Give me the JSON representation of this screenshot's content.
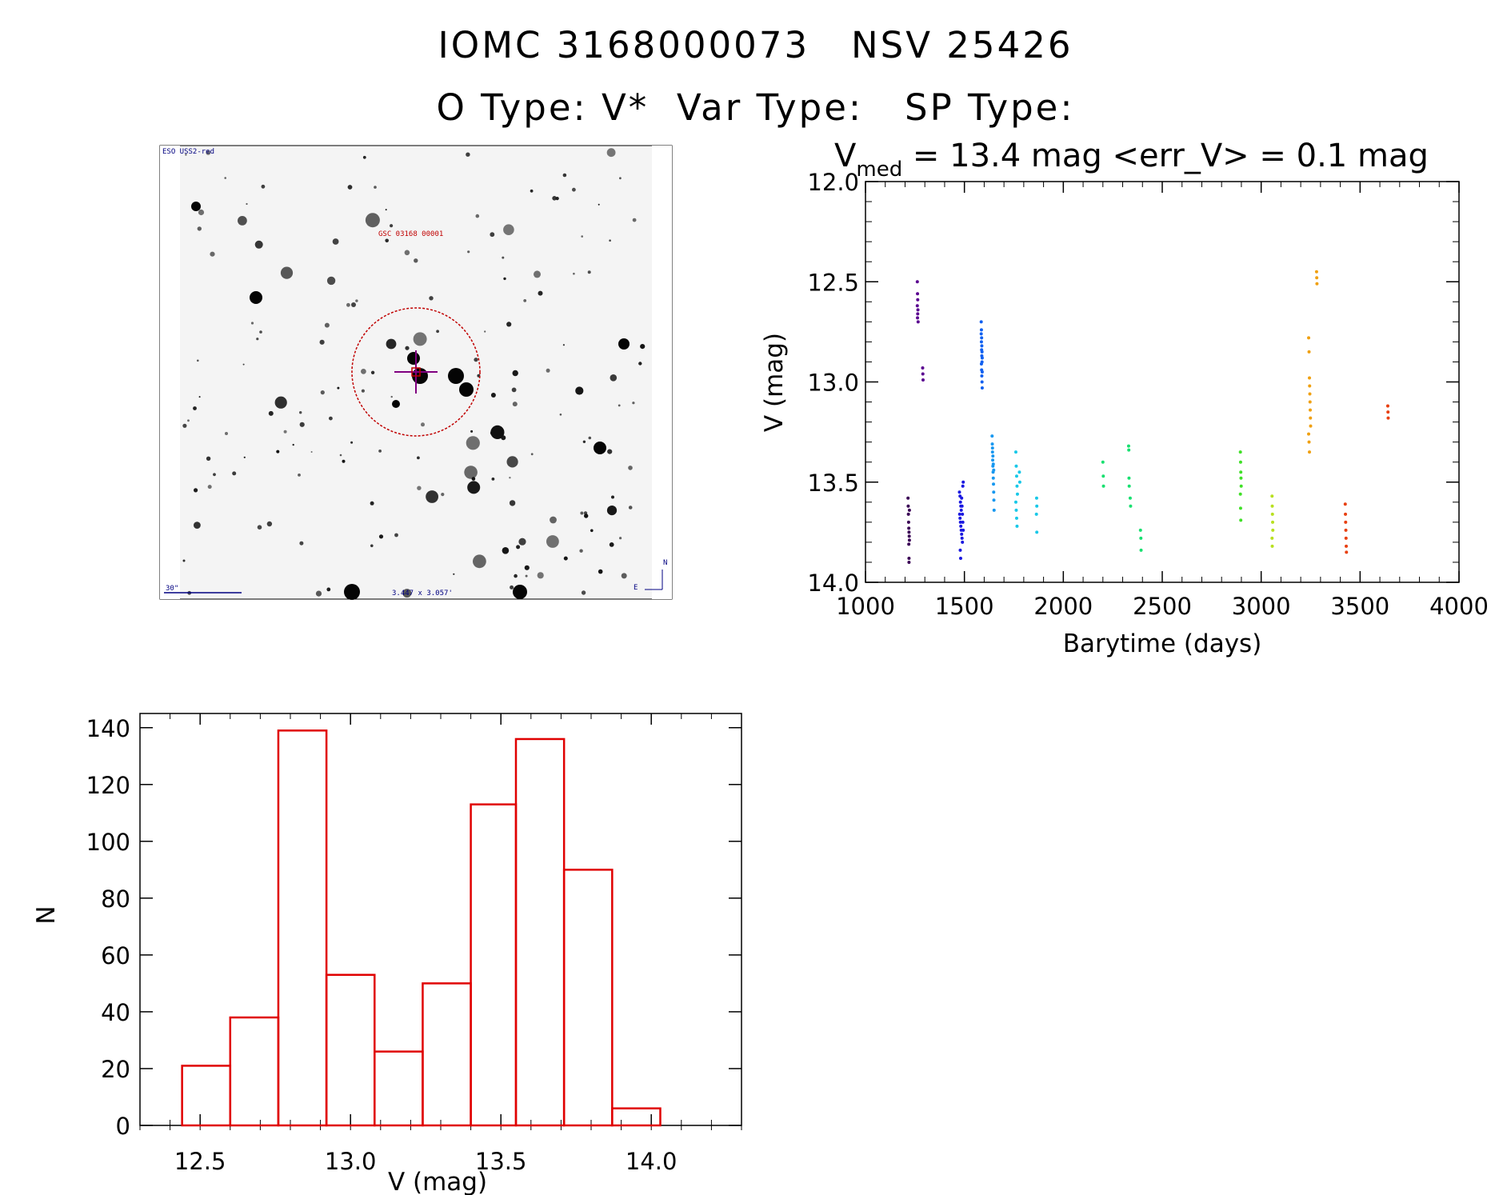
{
  "header": {
    "line1": "IOMC 3168000073   NSV 25426",
    "line2": "O Type: V*  Var Type:   SP Type:"
  },
  "image_panel": {
    "survey_label": "ESO USS2-red",
    "object_label": "GSC 03168 00001",
    "scale_label": "30\"",
    "size_label": "3.447 x 3.057'",
    "north_label": "N",
    "east_label": "E",
    "circle_color": "#c00000",
    "crosshair_color": "#800080"
  },
  "chart_data": [
    {
      "type": "scatter",
      "title": "V_med = 13.4 mag <err_V> = 0.1 mag",
      "title_parts": {
        "v": "V",
        "sub": "med",
        "rest": " = 13.4 mag <err_V> = 0.1 mag"
      },
      "xlabel": "Barytime (days)",
      "ylabel": "V (mag)",
      "xlim": [
        1000,
        4000
      ],
      "ylim": [
        14.0,
        12.0
      ],
      "y_inverted": true,
      "xticks": [
        1000,
        1500,
        2000,
        2500,
        3000,
        3500,
        4000
      ],
      "yticks": [
        "12.0",
        "12.5",
        "13.0",
        "13.5",
        "14.0"
      ],
      "ytick_values": [
        12.0,
        12.5,
        13.0,
        13.5,
        14.0
      ],
      "series": [
        {
          "color": "#3a0055",
          "points": [
            [
              1215,
              13.58
            ],
            [
              1216,
              13.62
            ],
            [
              1217,
              13.66
            ],
            [
              1218,
              13.7
            ],
            [
              1219,
              13.73
            ],
            [
              1220,
              13.75
            ],
            [
              1221,
              13.77
            ],
            [
              1222,
              13.79
            ],
            [
              1219,
              13.81
            ],
            [
              1220,
              13.88
            ],
            [
              1220,
              13.9
            ],
            [
              1222,
              13.64
            ]
          ]
        },
        {
          "color": "#5a0090",
          "points": [
            [
              1262,
              12.5
            ],
            [
              1263,
              12.56
            ],
            [
              1264,
              12.59
            ],
            [
              1262,
              12.62
            ],
            [
              1265,
              12.64
            ],
            [
              1264,
              12.66
            ],
            [
              1263,
              12.68
            ],
            [
              1266,
              12.7
            ],
            [
              1289,
              12.93
            ],
            [
              1290,
              12.96
            ],
            [
              1291,
              12.99
            ]
          ]
        },
        {
          "color": "#1a18e0",
          "points": [
            [
              1475,
              13.55
            ],
            [
              1478,
              13.57
            ],
            [
              1480,
              13.6
            ],
            [
              1482,
              13.62
            ],
            [
              1484,
              13.64
            ],
            [
              1476,
              13.66
            ],
            [
              1478,
              13.68
            ],
            [
              1480,
              13.7
            ],
            [
              1482,
              13.72
            ],
            [
              1484,
              13.74
            ],
            [
              1486,
              13.76
            ],
            [
              1488,
              13.78
            ],
            [
              1490,
              13.8
            ],
            [
              1492,
              13.52
            ],
            [
              1494,
              13.5
            ],
            [
              1479,
              13.84
            ],
            [
              1481,
              13.88
            ],
            [
              1486,
              13.58
            ],
            [
              1488,
              13.62
            ],
            [
              1490,
              13.66
            ],
            [
              1492,
              13.7
            ],
            [
              1494,
              13.74
            ]
          ]
        },
        {
          "color": "#1060f0",
          "points": [
            [
              1585,
              12.7
            ],
            [
              1586,
              12.74
            ],
            [
              1587,
              12.78
            ],
            [
              1588,
              12.82
            ],
            [
              1589,
              12.85
            ],
            [
              1590,
              12.88
            ],
            [
              1586,
              12.91
            ],
            [
              1587,
              12.94
            ],
            [
              1588,
              12.97
            ],
            [
              1589,
              13.0
            ],
            [
              1590,
              13.03
            ],
            [
              1585,
              12.76
            ],
            [
              1586,
              12.8
            ],
            [
              1587,
              12.84
            ],
            [
              1588,
              12.87
            ],
            [
              1589,
              12.9
            ],
            [
              1590,
              12.95
            ]
          ]
        },
        {
          "color": "#1898f0",
          "points": [
            [
              1640,
              13.27
            ],
            [
              1641,
              13.31
            ],
            [
              1642,
              13.35
            ],
            [
              1643,
              13.39
            ],
            [
              1644,
              13.42
            ],
            [
              1645,
              13.45
            ],
            [
              1646,
              13.48
            ],
            [
              1647,
              13.51
            ],
            [
              1648,
              13.55
            ],
            [
              1649,
              13.59
            ],
            [
              1650,
              13.64
            ],
            [
              1642,
              13.33
            ],
            [
              1644,
              13.37
            ],
            [
              1646,
              13.41
            ],
            [
              1648,
              13.44
            ]
          ]
        },
        {
          "color": "#18c8e8",
          "points": [
            [
              1760,
              13.35
            ],
            [
              1762,
              13.42
            ],
            [
              1764,
              13.47
            ],
            [
              1766,
              13.52
            ],
            [
              1768,
              13.56
            ],
            [
              1760,
              13.6
            ],
            [
              1762,
              13.64
            ],
            [
              1764,
              13.68
            ],
            [
              1766,
              13.72
            ],
            [
              1778,
              13.45
            ],
            [
              1780,
              13.5
            ],
            [
              1865,
              13.58
            ],
            [
              1866,
              13.62
            ],
            [
              1864,
              13.66
            ],
            [
              1866,
              13.75
            ]
          ]
        },
        {
          "color": "#18e070",
          "points": [
            [
              2200,
              13.4
            ],
            [
              2202,
              13.47
            ],
            [
              2203,
              13.52
            ],
            [
              2330,
              13.32
            ],
            [
              2331,
              13.34
            ],
            [
              2332,
              13.48
            ],
            [
              2333,
              13.52
            ],
            [
              2338,
              13.58
            ],
            [
              2340,
              13.62
            ],
            [
              2390,
              13.74
            ],
            [
              2392,
              13.78
            ],
            [
              2393,
              13.84
            ]
          ]
        },
        {
          "color": "#40e028",
          "points": [
            [
              2895,
              13.35
            ],
            [
              2896,
              13.4
            ],
            [
              2897,
              13.45
            ],
            [
              2898,
              13.48
            ],
            [
              2899,
              13.52
            ],
            [
              2895,
              13.56
            ],
            [
              2896,
              13.63
            ],
            [
              2897,
              13.69
            ]
          ]
        },
        {
          "color": "#b8e020",
          "points": [
            [
              3055,
              13.57
            ],
            [
              3056,
              13.62
            ],
            [
              3057,
              13.66
            ],
            [
              3058,
              13.7
            ],
            [
              3059,
              13.74
            ],
            [
              3055,
              13.78
            ],
            [
              3056,
              13.82
            ]
          ]
        },
        {
          "color": "#f0a010",
          "points": [
            [
              3280,
              12.45
            ],
            [
              3281,
              12.48
            ],
            [
              3282,
              12.51
            ],
            [
              3240,
              12.78
            ],
            [
              3242,
              12.85
            ],
            [
              3244,
              12.98
            ],
            [
              3245,
              13.02
            ],
            [
              3246,
              13.06
            ],
            [
              3247,
              13.1
            ],
            [
              3248,
              13.14
            ],
            [
              3249,
              13.18
            ],
            [
              3250,
              13.22
            ],
            [
              3240,
              13.26
            ],
            [
              3242,
              13.3
            ],
            [
              3244,
              13.35
            ]
          ]
        },
        {
          "color": "#e84010",
          "points": [
            [
              3425,
              13.61
            ],
            [
              3426,
              13.66
            ],
            [
              3427,
              13.7
            ],
            [
              3428,
              13.74
            ],
            [
              3429,
              13.78
            ],
            [
              3430,
              13.82
            ],
            [
              3431,
              13.85
            ],
            [
              3640,
              13.12
            ],
            [
              3641,
              13.15
            ],
            [
              3642,
              13.18
            ]
          ]
        }
      ]
    },
    {
      "type": "bar",
      "xlabel": "V (mag)",
      "ylabel": "N",
      "xlim": [
        12.3,
        14.3
      ],
      "ylim": [
        0,
        145
      ],
      "xticks": [
        "12.5",
        "13.0",
        "13.5",
        "14.0"
      ],
      "xtick_values": [
        12.5,
        13.0,
        13.5,
        14.0
      ],
      "yticks": [
        "0",
        "20",
        "40",
        "60",
        "80",
        "100",
        "120",
        "140"
      ],
      "ytick_values": [
        0,
        20,
        40,
        60,
        80,
        100,
        120,
        140
      ],
      "bin_edges": [
        12.44,
        12.6,
        12.76,
        12.92,
        13.08,
        13.24,
        13.4,
        13.55,
        13.71,
        13.87,
        14.03
      ],
      "values": [
        21,
        38,
        139,
        53,
        26,
        50,
        113,
        136,
        90,
        6
      ],
      "color": "#e00000"
    }
  ]
}
